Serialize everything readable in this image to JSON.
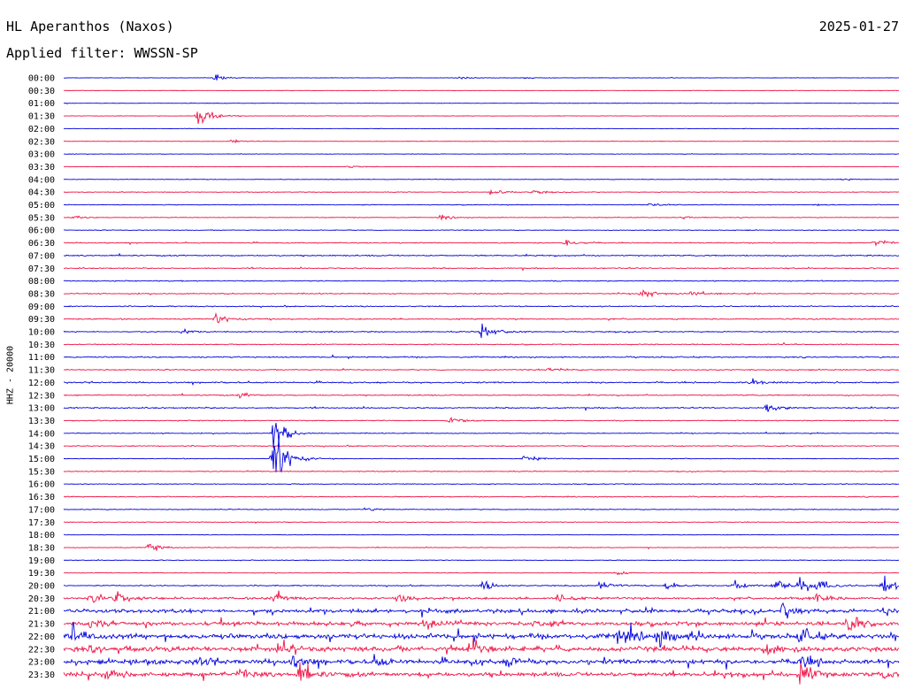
{
  "header": {
    "station": "HL Aperanthos (Naxos)",
    "date": "2025-01-27",
    "filter_label": "Applied filter: WWSSN-SP"
  },
  "chart_data": {
    "type": "helicorder",
    "title": "HL Aperanthos (Naxos)",
    "subtitle": "Applied filter: WWSSN-SP",
    "date": "2025-01-27",
    "ylabel": "HHZ - 20000",
    "colors": {
      "even": "#0000dd",
      "odd": "#ee1144"
    },
    "noise_level": [
      0.3,
      0.3,
      0.3,
      0.3,
      0.3,
      0.3,
      0.35,
      0.3,
      0.4,
      0.45,
      0.55,
      0.45,
      0.5,
      0.7,
      0.9,
      0.8,
      0.7,
      0.75,
      0.8,
      0.9,
      0.75,
      0.7,
      0.9,
      0.75,
      1.0,
      0.8,
      0.9,
      0.7,
      0.6,
      0.7,
      0.5,
      0.6,
      0.6,
      0.7,
      0.6,
      0.5,
      0.4,
      0.5,
      0.5,
      0.4,
      0.8,
      1.5,
      2.5,
      2.8,
      3.5,
      3.5,
      3.2,
      3.0
    ],
    "rows": [
      {
        "label": "00:00",
        "events": [
          {
            "x": 0.18,
            "amp": 6
          },
          {
            "x": 0.47,
            "amp": 3
          },
          {
            "x": 0.55,
            "amp": 2
          }
        ]
      },
      {
        "label": "00:30",
        "events": []
      },
      {
        "label": "01:00",
        "events": []
      },
      {
        "label": "01:30",
        "events": [
          {
            "x": 0.16,
            "amp": 28
          }
        ]
      },
      {
        "label": "02:00",
        "events": []
      },
      {
        "label": "02:30",
        "events": [
          {
            "x": 0.2,
            "amp": 3
          }
        ]
      },
      {
        "label": "03:00",
        "events": []
      },
      {
        "label": "03:30",
        "events": [
          {
            "x": 0.34,
            "amp": 3
          }
        ]
      },
      {
        "label": "04:00",
        "events": [
          {
            "x": 0.93,
            "amp": 2
          }
        ]
      },
      {
        "label": "04:30",
        "events": [
          {
            "x": 0.51,
            "amp": 6
          },
          {
            "x": 0.56,
            "amp": 4
          }
        ]
      },
      {
        "label": "05:00",
        "events": [
          {
            "x": 0.7,
            "amp": 3
          },
          {
            "x": 0.9,
            "amp": 2
          }
        ]
      },
      {
        "label": "05:30",
        "events": [
          {
            "x": 0.01,
            "amp": 3
          },
          {
            "x": 0.45,
            "amp": 4
          },
          {
            "x": 0.74,
            "amp": 3
          }
        ]
      },
      {
        "label": "06:00",
        "events": []
      },
      {
        "label": "06:30",
        "events": [
          {
            "x": 0.6,
            "amp": 8
          },
          {
            "x": 0.97,
            "amp": 8
          }
        ]
      },
      {
        "label": "07:00",
        "events": []
      },
      {
        "label": "07:30",
        "events": []
      },
      {
        "label": "08:00",
        "events": []
      },
      {
        "label": "08:30",
        "events": [
          {
            "x": 0.69,
            "amp": 10
          },
          {
            "x": 0.75,
            "amp": 4
          }
        ]
      },
      {
        "label": "09:00",
        "events": []
      },
      {
        "label": "09:30",
        "events": [
          {
            "x": 0.18,
            "amp": 12
          }
        ]
      },
      {
        "label": "10:00",
        "events": [
          {
            "x": 0.5,
            "amp": 20
          },
          {
            "x": 0.14,
            "amp": 4
          }
        ]
      },
      {
        "label": "10:30",
        "events": []
      },
      {
        "label": "11:00",
        "events": []
      },
      {
        "label": "11:30",
        "events": [
          {
            "x": 0.58,
            "amp": 4
          }
        ]
      },
      {
        "label": "12:00",
        "events": [
          {
            "x": 0.82,
            "amp": 6
          }
        ]
      },
      {
        "label": "12:30",
        "events": [
          {
            "x": 0.21,
            "amp": 5
          }
        ]
      },
      {
        "label": "13:00",
        "events": [
          {
            "x": 0.84,
            "amp": 10
          }
        ]
      },
      {
        "label": "13:30",
        "events": [
          {
            "x": 0.46,
            "amp": 8
          }
        ]
      },
      {
        "label": "14:00",
        "events": [
          {
            "x": 0.25,
            "amp": 35
          }
        ]
      },
      {
        "label": "14:30",
        "events": []
      },
      {
        "label": "15:00",
        "events": [
          {
            "x": 0.25,
            "amp": 75
          },
          {
            "x": 0.55,
            "amp": 7
          }
        ]
      },
      {
        "label": "15:30",
        "events": []
      },
      {
        "label": "16:00",
        "events": []
      },
      {
        "label": "16:30",
        "events": []
      },
      {
        "label": "17:00",
        "events": [
          {
            "x": 0.36,
            "amp": 4
          }
        ]
      },
      {
        "label": "17:30",
        "events": []
      },
      {
        "label": "18:00",
        "events": []
      },
      {
        "label": "18:30",
        "events": [
          {
            "x": 0.1,
            "amp": 10
          }
        ]
      },
      {
        "label": "19:00",
        "events": []
      },
      {
        "label": "19:30",
        "events": [
          {
            "x": 0.66,
            "amp": 4
          }
        ]
      },
      {
        "label": "20:00",
        "events": [
          {
            "x": 0.5,
            "amp": 10
          },
          {
            "x": 0.64,
            "amp": 12
          },
          {
            "x": 0.72,
            "amp": 8
          },
          {
            "x": 0.8,
            "amp": 10
          },
          {
            "x": 0.85,
            "amp": 14
          },
          {
            "x": 0.88,
            "amp": 16
          },
          {
            "x": 0.9,
            "amp": 12
          },
          {
            "x": 0.98,
            "amp": 18
          }
        ]
      },
      {
        "label": "20:30",
        "events": [
          {
            "x": 0.03,
            "amp": 12
          },
          {
            "x": 0.06,
            "amp": 22
          },
          {
            "x": 0.25,
            "amp": 10
          },
          {
            "x": 0.4,
            "amp": 10
          },
          {
            "x": 0.59,
            "amp": 10
          },
          {
            "x": 0.9,
            "amp": 12
          }
        ]
      },
      {
        "label": "21:00",
        "events": [
          {
            "x": 0.86,
            "amp": 14
          },
          {
            "x": 0.98,
            "amp": 8
          }
        ]
      },
      {
        "label": "21:30",
        "events": [
          {
            "x": 0.03,
            "amp": 10
          },
          {
            "x": 0.43,
            "amp": 10
          },
          {
            "x": 0.56,
            "amp": 8
          },
          {
            "x": 0.94,
            "amp": 14
          }
        ]
      },
      {
        "label": "22:00",
        "events": [
          {
            "x": 0.01,
            "amp": 12
          },
          {
            "x": 0.66,
            "amp": 22
          },
          {
            "x": 0.71,
            "amp": 20
          },
          {
            "x": 0.88,
            "amp": 16
          }
        ]
      },
      {
        "label": "22:30",
        "events": [
          {
            "x": 0.25,
            "amp": 10
          },
          {
            "x": 0.49,
            "amp": 14
          },
          {
            "x": 0.84,
            "amp": 12
          }
        ]
      },
      {
        "label": "23:00",
        "events": [
          {
            "x": 0.16,
            "amp": 10
          },
          {
            "x": 0.27,
            "amp": 14
          },
          {
            "x": 0.37,
            "amp": 12
          },
          {
            "x": 0.53,
            "amp": 10
          },
          {
            "x": 0.88,
            "amp": 12
          }
        ]
      },
      {
        "label": "23:30",
        "events": [
          {
            "x": 0.05,
            "amp": 8
          },
          {
            "x": 0.21,
            "amp": 10
          },
          {
            "x": 0.28,
            "amp": 22
          },
          {
            "x": 0.88,
            "amp": 30
          },
          {
            "x": 0.98,
            "amp": 8
          }
        ]
      }
    ]
  }
}
